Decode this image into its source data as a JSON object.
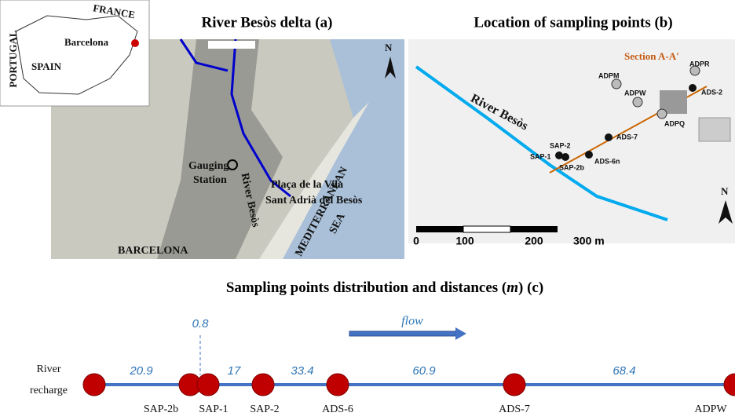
{
  "panel_a": {
    "title": "River Besòs delta (a)",
    "labels": {
      "france": "FRANCE",
      "barcelona_inset": "Barcelona",
      "portugal": "PORTUGAL",
      "spain": "SPAIN",
      "gauging_1": "Gauging",
      "gauging_2": "Station",
      "river": "River Besòs",
      "placa": "Plaça de la Vila",
      "sant_adria": "Sant Adrià del Besòs",
      "sea_1": "MEDITERRANEAN",
      "sea_2": "SEA",
      "barcelona": "BARCELONA",
      "north": "N"
    }
  },
  "panel_b": {
    "title": "Location of sampling points (b)",
    "labels": {
      "section": "Section A-A'",
      "adpr": "ADPR",
      "ads2": "ADS-2",
      "adpm": "ADPM",
      "adpw": "ADPW",
      "adpq": "ADPQ",
      "ads7": "ADS-7",
      "sap2": "SAP-2",
      "sap1": "SAP-1",
      "sap2b": "SAP-2b",
      "ads6n": "ADS-6n",
      "river": "River Besòs",
      "north": "N"
    },
    "scale": [
      "0",
      "100",
      "200",
      "300 m"
    ]
  },
  "panel_c": {
    "title_before": "Sampling points distribution and distances (",
    "title_unit": "m",
    "title_after": ") (c)",
    "flow": "flow",
    "start_1": "River",
    "start_2": "recharge",
    "points": [
      "SAP-2b",
      "SAP-1",
      "SAP-2",
      "ADS-6",
      "ADS-7",
      "ADPW"
    ],
    "distances": [
      20.9,
      0.8,
      17,
      33.4,
      60.9,
      68.4
    ]
  }
}
